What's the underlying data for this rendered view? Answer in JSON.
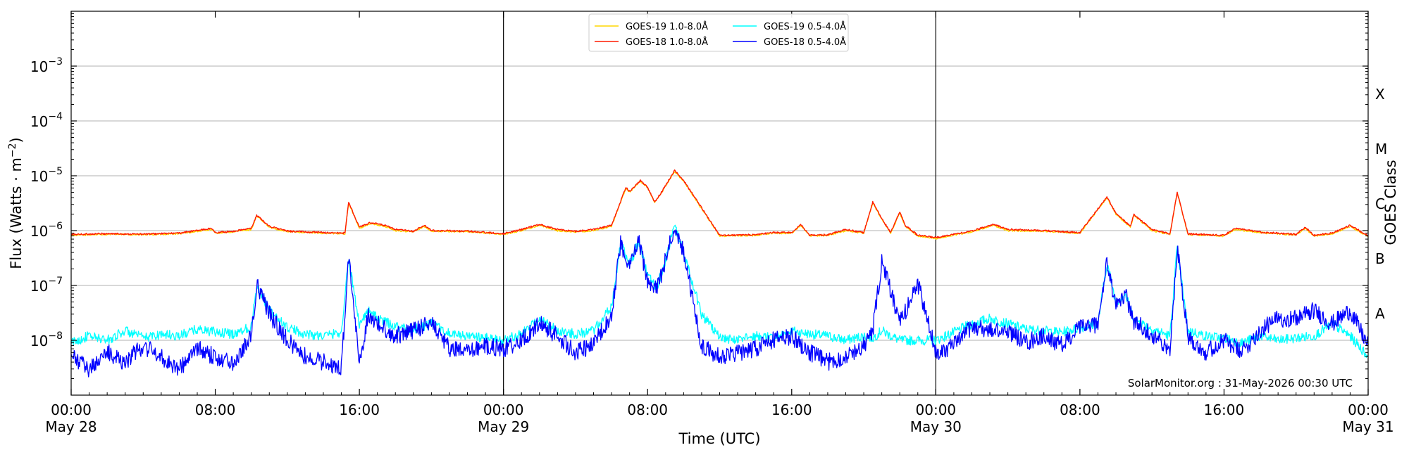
{
  "chart_data": {
    "type": "line",
    "xlabel": "Time (UTC)",
    "ylabel": "Flux (Watts · m",
    "ylabel_superscript": "−2",
    "ylabel_close": ")",
    "right_ylabel": "GOES Class",
    "credit": "SolarMonitor.org : 31-May-2026 00:30 UTC",
    "yscale": "log",
    "ylim": [
      1e-09,
      0.01
    ],
    "xlim": [
      "2026-05-28T00:00",
      "2026-05-31T00:00"
    ],
    "grid": "horizontal at decades",
    "legend_placement": "top-center",
    "y_ticks": [
      {
        "base": "10",
        "exp": "−3",
        "value": 0.001
      },
      {
        "base": "10",
        "exp": "−4",
        "value": 0.0001
      },
      {
        "base": "10",
        "exp": "−5",
        "value": 1e-05
      },
      {
        "base": "10",
        "exp": "−6",
        "value": 1e-06
      },
      {
        "base": "10",
        "exp": "−7",
        "value": 1e-07
      },
      {
        "base": "10",
        "exp": "−8",
        "value": 1e-08
      }
    ],
    "x_ticks": [
      {
        "hour": 0,
        "time": "00:00",
        "date": "May 28"
      },
      {
        "hour": 8,
        "time": "08:00",
        "date": ""
      },
      {
        "hour": 16,
        "time": "16:00",
        "date": ""
      },
      {
        "hour": 24,
        "time": "00:00",
        "date": "May 29"
      },
      {
        "hour": 32,
        "time": "08:00",
        "date": ""
      },
      {
        "hour": 40,
        "time": "16:00",
        "date": ""
      },
      {
        "hour": 48,
        "time": "00:00",
        "date": "May 30"
      },
      {
        "hour": 56,
        "time": "08:00",
        "date": ""
      },
      {
        "hour": 64,
        "time": "16:00",
        "date": ""
      },
      {
        "hour": 72,
        "time": "00:00",
        "date": "May 31"
      }
    ],
    "day_boundaries": [
      "2026-05-29T00:00",
      "2026-05-30T00:00"
    ],
    "goes_classes": [
      {
        "label": "A",
        "lower": 1e-08
      },
      {
        "label": "B",
        "lower": 1e-07
      },
      {
        "label": "C",
        "lower": 1e-06
      },
      {
        "label": "M",
        "lower": 1e-05
      },
      {
        "label": "X",
        "lower": 0.0001
      }
    ],
    "series": [
      {
        "name": "GOES-19 1.0-8.0Å",
        "color": "#ffd700",
        "x": [
          0,
          2,
          4,
          6,
          7.8,
          8,
          9,
          10,
          10.3,
          11,
          12,
          14,
          15.2,
          15.4,
          16,
          16.6,
          17.4,
          18,
          19,
          19.6,
          20,
          22,
          24,
          25,
          26,
          27,
          28,
          29,
          30,
          30.8,
          31,
          31.6,
          32,
          32.4,
          32.8,
          33.5,
          34,
          35,
          36,
          38,
          39,
          40,
          40.5,
          41,
          42,
          43,
          44,
          44.5,
          45,
          45.5,
          46,
          46.3,
          47,
          48,
          50,
          51.2,
          52,
          54,
          56,
          57.5,
          58,
          58.8,
          59,
          60,
          61,
          61.4,
          62,
          64,
          64.6,
          66,
          68,
          68.5,
          69,
          70,
          71,
          72
        ],
        "y": [
          8.2e-07,
          8.6e-07,
          8.4e-07,
          8.8e-07,
          1.05e-06,
          9e-07,
          9.5e-07,
          1.05e-06,
          1.85e-06,
          1.15e-06,
          9.6e-07,
          9e-07,
          8.8e-07,
          3.2e-06,
          1.1e-06,
          1.35e-06,
          1.2e-06,
          1e-06,
          9.5e-07,
          1.2e-06,
          9.8e-07,
          9.6e-07,
          8.6e-07,
          1e-06,
          1.25e-06,
          1e-06,
          9.5e-07,
          1e-06,
          1.2e-06,
          6e-06,
          5e-06,
          8e-06,
          6e-06,
          3.2e-06,
          5e-06,
          1.2e-05,
          8e-06,
          2.5e-06,
          8e-07,
          8.2e-07,
          9e-07,
          9e-07,
          1.25e-06,
          8e-07,
          8.2e-07,
          1e-06,
          9e-07,
          3.2e-06,
          1.6e-06,
          9e-07,
          2.1e-06,
          1.2e-06,
          8e-07,
          7.2e-07,
          9.5e-07,
          1.25e-06,
          1e-06,
          9.8e-07,
          9e-07,
          4e-06,
          2e-06,
          1.15e-06,
          1.9e-06,
          1e-06,
          8.5e-07,
          4.9e-06,
          8.5e-07,
          8e-07,
          1.05e-06,
          9.2e-07,
          8.3e-07,
          1.1e-06,
          8e-07,
          8.8e-07,
          1.2e-06,
          7.8e-07
        ]
      },
      {
        "name": "GOES-18 1.0-8.0Å",
        "color": "#ff1a00",
        "x": [
          0,
          2,
          4,
          6,
          7.8,
          8,
          9,
          10,
          10.3,
          11,
          12,
          14,
          15.2,
          15.4,
          16,
          16.6,
          17.4,
          18,
          19,
          19.6,
          20,
          22,
          24,
          25,
          26,
          27,
          28,
          29,
          30,
          30.8,
          31,
          31.6,
          32,
          32.4,
          32.8,
          33.5,
          34,
          35,
          36,
          38,
          39,
          40,
          40.5,
          41,
          42,
          43,
          44,
          44.5,
          45,
          45.5,
          46,
          46.3,
          47,
          48,
          50,
          51.2,
          52,
          54,
          56,
          57.5,
          58,
          58.8,
          59,
          60,
          61,
          61.4,
          62,
          64,
          64.6,
          66,
          68,
          68.5,
          69,
          70,
          71,
          72
        ],
        "y": [
          8.5e-07,
          8.8e-07,
          8.6e-07,
          9e-07,
          1.1e-06,
          9.2e-07,
          9.7e-07,
          1.1e-06,
          1.9e-06,
          1.2e-06,
          9.8e-07,
          9.2e-07,
          9e-07,
          3.3e-06,
          1.15e-06,
          1.4e-06,
          1.25e-06,
          1.05e-06,
          9.7e-07,
          1.25e-06,
          1e-06,
          9.8e-07,
          8.8e-07,
          1.05e-06,
          1.3e-06,
          1.05e-06,
          9.7e-07,
          1.05e-06,
          1.25e-06,
          6.2e-06,
          5.2e-06,
          8.2e-06,
          6.2e-06,
          3.3e-06,
          5.2e-06,
          1.25e-05,
          8.2e-06,
          2.6e-06,
          8.2e-07,
          8.4e-07,
          9.2e-07,
          9.2e-07,
          1.3e-06,
          8.2e-07,
          8.4e-07,
          1.05e-06,
          9.2e-07,
          3.3e-06,
          1.65e-06,
          9.2e-07,
          2.2e-06,
          1.25e-06,
          8.2e-07,
          7.5e-07,
          9.8e-07,
          1.3e-06,
          1.05e-06,
          1e-06,
          9.2e-07,
          4.1e-06,
          2.05e-06,
          1.2e-06,
          1.95e-06,
          1.05e-06,
          8.7e-07,
          5e-06,
          8.7e-07,
          8.2e-07,
          1.1e-06,
          9.4e-07,
          8.5e-07,
          1.15e-06,
          8.2e-07,
          9e-07,
          1.25e-06,
          8e-07
        ]
      },
      {
        "name": "GOES-19 0.5-4.0Å",
        "color": "#00ffff",
        "x": [
          0,
          1,
          2,
          3,
          4,
          5,
          6,
          7,
          8,
          9,
          10,
          10.3,
          11,
          12,
          13,
          14,
          15,
          15.4,
          16,
          16.5,
          17,
          18,
          19,
          20,
          21,
          22,
          23,
          24,
          25,
          26,
          27,
          28,
          29,
          30,
          30.5,
          31,
          31.5,
          32,
          32.5,
          33,
          33.5,
          34,
          35,
          36,
          37,
          38,
          39,
          40,
          41,
          42,
          43,
          44,
          44.5,
          45,
          45.5,
          46,
          47,
          48,
          49,
          50,
          51,
          52,
          53,
          54,
          55,
          56,
          57,
          57.5,
          58,
          58.5,
          59,
          60,
          61,
          61.4,
          62,
          63,
          64,
          65,
          66,
          67,
          68,
          69,
          70,
          71,
          72
        ],
        "y": [
          9e-09,
          1.2e-08,
          1e-08,
          1.5e-08,
          1.1e-08,
          1.3e-08,
          1.2e-08,
          1.6e-08,
          1.4e-08,
          1.3e-08,
          1.8e-08,
          1e-07,
          3.5e-08,
          1.7e-08,
          1.3e-08,
          1.2e-08,
          1.4e-08,
          3e-07,
          2e-08,
          3.5e-08,
          2.5e-08,
          1.8e-08,
          1.6e-08,
          2e-08,
          1.3e-08,
          1.2e-08,
          1.1e-08,
          1e-08,
          1.3e-08,
          2.5e-08,
          1.5e-08,
          1.3e-08,
          1.5e-08,
          4e-08,
          6e-07,
          2.5e-07,
          6e-07,
          1.5e-07,
          9e-08,
          3e-07,
          1.2e-06,
          4e-07,
          3e-08,
          1.1e-08,
          1e-08,
          1.2e-08,
          1.1e-08,
          1.5e-08,
          1.3e-08,
          1.2e-08,
          1e-08,
          1.2e-08,
          1.1e-08,
          1.5e-08,
          1.2e-08,
          1e-08,
          1e-08,
          1e-08,
          1.4e-08,
          2e-08,
          2.5e-08,
          2e-08,
          1.6e-08,
          1.5e-08,
          1.4e-08,
          1.7e-08,
          2e-08,
          2.6e-07,
          5e-08,
          7e-08,
          2.5e-08,
          1.6e-08,
          1.2e-08,
          5e-07,
          1.5e-08,
          1.2e-08,
          1.1e-08,
          9e-09,
          1.2e-08,
          1e-08,
          1.1e-08,
          1.2e-08,
          2e-08,
          1.2e-08,
          5e-09
        ]
      },
      {
        "name": "GOES-18 0.5-4.0Å",
        "color": "#0000ff",
        "x": [
          0,
          1,
          2,
          3,
          4,
          5,
          6,
          7,
          8,
          9,
          10,
          10.3,
          11,
          12,
          13,
          14,
          15,
          15.4,
          16,
          16.5,
          17,
          18,
          19,
          20,
          21,
          22,
          23,
          24,
          25,
          26,
          27,
          28,
          29,
          30,
          30.5,
          31,
          31.5,
          32,
          32.5,
          33,
          33.5,
          34,
          35,
          36,
          37,
          38,
          39,
          40,
          41,
          42,
          43,
          44,
          44.5,
          45,
          45.5,
          46,
          47,
          48,
          49,
          50,
          51,
          52,
          53,
          54,
          55,
          56,
          57,
          57.5,
          58,
          58.5,
          59,
          60,
          61,
          61.4,
          62,
          63,
          64,
          65,
          66,
          67,
          68,
          69,
          70,
          71,
          72
        ],
        "y": [
          5e-09,
          3e-09,
          6e-09,
          4e-09,
          8e-09,
          5e-09,
          3e-09,
          7e-09,
          5e-09,
          4e-09,
          1.2e-08,
          1.05e-07,
          3e-08,
          1e-08,
          5e-09,
          4e-09,
          3e-09,
          3.4e-07,
          4e-09,
          3e-08,
          2e-08,
          1.2e-08,
          1.5e-08,
          2.2e-08,
          7e-09,
          6e-09,
          8e-09,
          7e-09,
          1e-08,
          2e-08,
          1.2e-08,
          6e-09,
          8e-09,
          3e-08,
          6e-07,
          2.2e-07,
          6.5e-07,
          1.2e-07,
          8e-08,
          3e-07,
          1.3e-06,
          4e-07,
          8e-09,
          5e-09,
          6e-09,
          7e-09,
          1e-08,
          1.2e-08,
          6e-09,
          4e-09,
          5e-09,
          8e-09,
          1.5e-08,
          2.6e-07,
          8e-08,
          2e-08,
          1.1e-07,
          6e-09,
          8e-09,
          1.8e-08,
          1.5e-08,
          1.5e-08,
          9e-09,
          1.2e-08,
          8e-09,
          1.7e-08,
          2e-08,
          2.6e-07,
          4e-08,
          7.2e-08,
          2.2e-08,
          1.3e-08,
          6e-09,
          5e-07,
          1.2e-08,
          6e-09,
          1e-08,
          6e-09,
          1.5e-08,
          2.5e-08,
          2.5e-08,
          3.5e-08,
          2e-08,
          3.5e-08,
          8e-09
        ]
      }
    ]
  }
}
